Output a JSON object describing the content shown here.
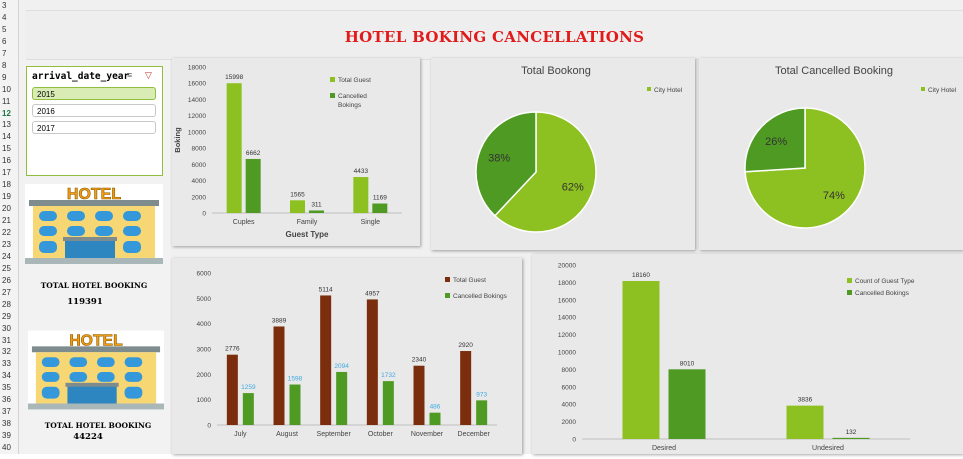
{
  "dashboard": {
    "title": "HOTEL BOKING CANCELLATIONS"
  },
  "row_numbers": [
    "3",
    "4",
    "5",
    "6",
    "7",
    "8",
    "9",
    "10",
    "11",
    "12",
    "13",
    "14",
    "15",
    "16",
    "17",
    "18",
    "19",
    "20",
    "21",
    "22",
    "23",
    "24",
    "25",
    "26",
    "27",
    "28",
    "29",
    "30",
    "31",
    "32",
    "33",
    "34",
    "35",
    "36",
    "37",
    "38",
    "39",
    "40"
  ],
  "selected_row": "12",
  "slicer": {
    "header": "arrival_date_year",
    "items": [
      {
        "label": "2015",
        "selected": true
      },
      {
        "label": "2016",
        "selected": false
      },
      {
        "label": "2017",
        "selected": false
      }
    ]
  },
  "kpis": [
    {
      "icon_text": "HOTEL",
      "label": "TOTAL HOTEL BOOKING",
      "value": "119391"
    },
    {
      "icon_text": "HOTEL",
      "label": "TOTAL HOTEL BOOKING",
      "value": "44224"
    }
  ],
  "colors": {
    "light_green": "#8dc021",
    "dark_green": "#4e9a22",
    "brown": "#7a2e0e",
    "title_red": "#e11a1a",
    "label_blue": "#3fa9e0"
  },
  "chart_data": [
    {
      "id": "guest_type",
      "type": "bar",
      "categories": [
        "Cuples",
        "Family",
        "Single"
      ],
      "series": [
        {
          "name": "Total Guest",
          "values": [
            15998,
            1565,
            4433
          ]
        },
        {
          "name": "Cancelled Bokings",
          "values": [
            6662,
            311,
            1169
          ]
        }
      ],
      "xlabel": "Guest Type",
      "ylabel": "Boking",
      "ylim": [
        0,
        18000
      ],
      "yticks": [
        "0",
        "2000",
        "4000",
        "6000",
        "8000",
        "10000",
        "12000",
        "14000",
        "16000",
        "18000"
      ],
      "legend_position": "right"
    },
    {
      "id": "total_booking",
      "type": "pie",
      "title": "Total Bookong",
      "legend": [
        "City Hotel"
      ],
      "slices": [
        {
          "value": 62,
          "label": "62%"
        },
        {
          "value": 38,
          "label": "38%"
        }
      ]
    },
    {
      "id": "total_cancelled",
      "type": "pie",
      "title": "Total Cancelled Booking",
      "legend": [
        "City Hotel"
      ],
      "slices": [
        {
          "value": 74,
          "label": "74%"
        },
        {
          "value": 26,
          "label": "26%"
        }
      ]
    },
    {
      "id": "monthly",
      "type": "bar",
      "categories": [
        "July",
        "August",
        "September",
        "October",
        "November",
        "December"
      ],
      "series": [
        {
          "name": "Total Guest",
          "values": [
            2776,
            3889,
            5114,
            4957,
            2340,
            2920
          ]
        },
        {
          "name": "Cancelled Bokings",
          "values": [
            1259,
            1598,
            2094,
            1732,
            486,
            973
          ]
        }
      ],
      "ylim": [
        0,
        6000
      ],
      "yticks": [
        "0",
        "1000",
        "2000",
        "3000",
        "4000",
        "5000",
        "6000"
      ],
      "legend_position": "top-right"
    },
    {
      "id": "deposit",
      "type": "bar",
      "categories": [
        "Desired",
        "Undesired"
      ],
      "series": [
        {
          "name": "Count of Guest Type",
          "values": [
            18160,
            3836
          ]
        },
        {
          "name": "Cancelled Bokings",
          "values": [
            8010,
            132
          ]
        }
      ],
      "ylim": [
        0,
        20000
      ],
      "yticks": [
        "0",
        "2000",
        "4000",
        "6000",
        "8000",
        "10000",
        "12000",
        "14000",
        "16000",
        "18000",
        "20000"
      ],
      "legend_position": "top-right"
    }
  ]
}
